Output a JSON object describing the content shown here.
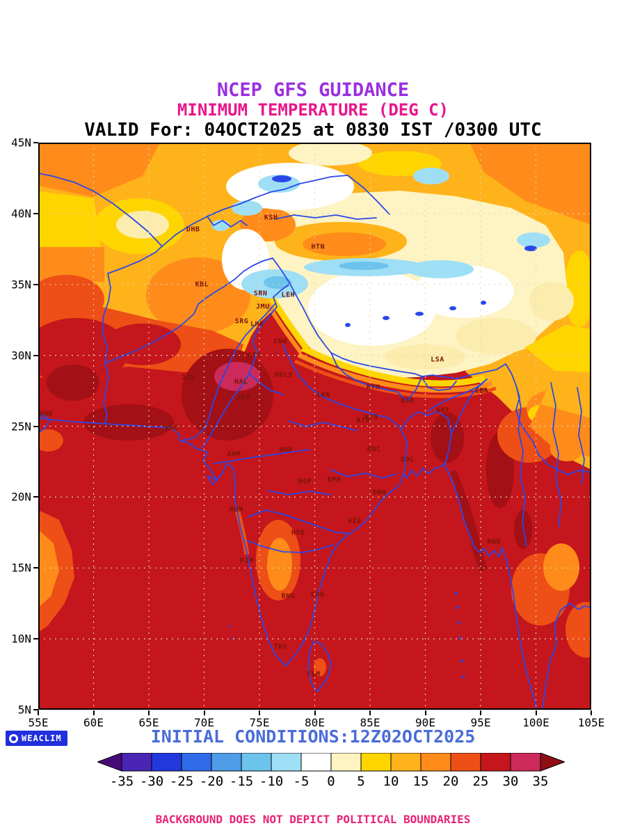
{
  "header": {
    "title": "NCEP GFS GUIDANCE",
    "subtitle": "MINIMUM TEMPERATURE (DEG C)",
    "valid_line": "VALID For: 04OCT2025 at 0830 IST /0300 UTC"
  },
  "map": {
    "lat_ticks": [
      "45N",
      "40N",
      "35N",
      "30N",
      "25N",
      "20N",
      "15N",
      "10N",
      "5N"
    ],
    "lon_ticks": [
      "55E",
      "60E",
      "65E",
      "70E",
      "75E",
      "80E",
      "85E",
      "90E",
      "95E",
      "100E",
      "105E"
    ],
    "lon_range": [
      55,
      105
    ],
    "lat_range": [
      5,
      45
    ],
    "cities": [
      {
        "code": "DHB",
        "lon": 69.0,
        "lat": 38.85
      },
      {
        "code": "KSH",
        "lon": 76.05,
        "lat": 39.7
      },
      {
        "code": "HTN",
        "lon": 80.3,
        "lat": 37.65
      },
      {
        "code": "KBL",
        "lon": 69.8,
        "lat": 35.0
      },
      {
        "code": "SRN",
        "lon": 75.1,
        "lat": 34.35
      },
      {
        "code": "LEH",
        "lon": 77.6,
        "lat": 34.25
      },
      {
        "code": "JMU",
        "lon": 75.3,
        "lat": 33.4
      },
      {
        "code": "SRG",
        "lon": 73.4,
        "lat": 32.4
      },
      {
        "code": "LHR",
        "lon": 74.8,
        "lat": 32.2
      },
      {
        "code": "CNG",
        "lon": 76.9,
        "lat": 30.95
      },
      {
        "code": "STS",
        "lon": 74.55,
        "lat": 30.0
      },
      {
        "code": "JCB",
        "lon": 68.55,
        "lat": 28.4
      },
      {
        "code": "NAL",
        "lon": 73.35,
        "lat": 28.1
      },
      {
        "code": "NDLS",
        "lon": 77.2,
        "lat": 28.6
      },
      {
        "code": "JDP",
        "lon": 73.55,
        "lat": 27.0
      },
      {
        "code": "LKN",
        "lon": 80.8,
        "lat": 27.2
      },
      {
        "code": "KTM",
        "lon": 85.3,
        "lat": 27.7
      },
      {
        "code": "BGD",
        "lon": 88.4,
        "lat": 26.8
      },
      {
        "code": "GHT",
        "lon": 91.6,
        "lat": 26.1
      },
      {
        "code": "CBA",
        "lon": 95.1,
        "lat": 27.5
      },
      {
        "code": "LSA",
        "lon": 91.1,
        "lat": 29.7
      },
      {
        "code": "DUB",
        "lon": 55.7,
        "lat": 25.85
      },
      {
        "code": "KRC",
        "lon": 67.1,
        "lat": 24.9
      },
      {
        "code": "PTN",
        "lon": 85.1,
        "lat": 25.6
      },
      {
        "code": "RTR",
        "lon": 84.4,
        "lat": 25.35
      },
      {
        "code": "AHM",
        "lon": 72.7,
        "lat": 23.0
      },
      {
        "code": "BHP",
        "lon": 77.4,
        "lat": 23.3
      },
      {
        "code": "RNC",
        "lon": 85.35,
        "lat": 23.35
      },
      {
        "code": "KOL",
        "lon": 88.4,
        "lat": 22.6
      },
      {
        "code": "NGP",
        "lon": 79.1,
        "lat": 21.1
      },
      {
        "code": "RPR",
        "lon": 81.75,
        "lat": 21.2
      },
      {
        "code": "BWN",
        "lon": 85.85,
        "lat": 20.3
      },
      {
        "code": "MUM",
        "lon": 72.9,
        "lat": 19.1
      },
      {
        "code": "HYD",
        "lon": 78.5,
        "lat": 17.45
      },
      {
        "code": "VZG",
        "lon": 83.6,
        "lat": 18.3
      },
      {
        "code": "RNG",
        "lon": 96.2,
        "lat": 16.85
      },
      {
        "code": "PJM",
        "lon": 73.85,
        "lat": 15.5
      },
      {
        "code": "CHN",
        "lon": 80.25,
        "lat": 13.1
      },
      {
        "code": "BNG",
        "lon": 77.6,
        "lat": 13.0
      },
      {
        "code": "TRV",
        "lon": 76.9,
        "lat": 9.4
      },
      {
        "code": "CLM",
        "lon": 79.9,
        "lat": 7.5
      }
    ]
  },
  "colorbar": {
    "tick_labels": [
      "-35",
      "-30",
      "-25",
      "-20",
      "-15",
      "-10",
      "-5",
      "0",
      "5",
      "10",
      "15",
      "20",
      "25",
      "30",
      "35"
    ],
    "colors": [
      "#470b79",
      "#4a25b4",
      "#2338dc",
      "#2f6ae8",
      "#4f9ce8",
      "#6cc3ec",
      "#9fdff5",
      "#ffffff",
      "#fdf3c3",
      "#ffd500",
      "#ffb31a",
      "#ff8c1a",
      "#ed4f16",
      "#c4161c",
      "#cb2a5a",
      "#8e0e14"
    ]
  },
  "footer": {
    "initial_conditions": "INITIAL CONDITIONS:12Z02OCT2025",
    "logo": "WEACLIM",
    "disclaimer": "BACKGROUND DOES NOT DEPICT POLITICAL BOUNDARIES"
  }
}
